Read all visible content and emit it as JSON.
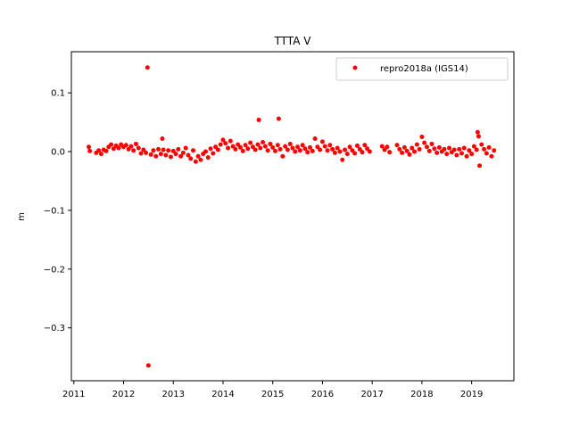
{
  "chart_data": {
    "type": "scatter",
    "title": "TTTA V",
    "xlabel": "",
    "ylabel": "m",
    "xlim": [
      2010.95,
      2019.85
    ],
    "ylim": [
      -0.39,
      0.17
    ],
    "xticks": [
      2011,
      2012,
      2013,
      2014,
      2015,
      2016,
      2017,
      2018,
      2019
    ],
    "xtick_labels": [
      "2011",
      "2012",
      "2013",
      "2014",
      "2015",
      "2016",
      "2017",
      "2018",
      "2019"
    ],
    "yticks": [
      0.1,
      0.0,
      -0.1,
      -0.2,
      -0.3
    ],
    "ytick_labels": [
      "0.1",
      "0.0",
      "−0.1",
      "−0.2",
      "−0.3"
    ],
    "grid": false,
    "legend_position": "top-right",
    "series": [
      {
        "name": "repro2018a (IGS14)",
        "color": "#ff0000",
        "marker": "circle",
        "points": [
          [
            2011.3,
            0.008
          ],
          [
            2011.32,
            0.001
          ],
          [
            2011.45,
            -0.002
          ],
          [
            2011.5,
            0.002
          ],
          [
            2011.55,
            -0.004
          ],
          [
            2011.6,
            0.003
          ],
          [
            2011.65,
            0.001
          ],
          [
            2011.7,
            0.008
          ],
          [
            2011.75,
            0.012
          ],
          [
            2011.8,
            0.005
          ],
          [
            2011.85,
            0.01
          ],
          [
            2011.9,
            0.006
          ],
          [
            2011.95,
            0.012
          ],
          [
            2012.0,
            0.008
          ],
          [
            2012.05,
            0.011
          ],
          [
            2012.1,
            0.004
          ],
          [
            2012.15,
            0.009
          ],
          [
            2012.2,
            0.002
          ],
          [
            2012.25,
            0.013
          ],
          [
            2012.3,
            0.006
          ],
          [
            2012.35,
            -0.003
          ],
          [
            2012.4,
            0.003
          ],
          [
            2012.45,
            -0.002
          ],
          [
            2012.48,
            0.143
          ],
          [
            2012.5,
            -0.364
          ],
          [
            2012.55,
            -0.005
          ],
          [
            2012.6,
            0.002
          ],
          [
            2012.65,
            -0.008
          ],
          [
            2012.7,
            0.004
          ],
          [
            2012.75,
            -0.004
          ],
          [
            2012.78,
            0.022
          ],
          [
            2012.8,
            0.003
          ],
          [
            2012.85,
            -0.006
          ],
          [
            2012.9,
            0.002
          ],
          [
            2012.95,
            -0.009
          ],
          [
            2013.0,
            0.001
          ],
          [
            2013.05,
            -0.004
          ],
          [
            2013.1,
            0.004
          ],
          [
            2013.15,
            -0.008
          ],
          [
            2013.2,
            -0.002
          ],
          [
            2013.25,
            0.006
          ],
          [
            2013.3,
            -0.006
          ],
          [
            2013.35,
            -0.012
          ],
          [
            2013.4,
            0.002
          ],
          [
            2013.45,
            -0.017
          ],
          [
            2013.5,
            -0.008
          ],
          [
            2013.55,
            -0.014
          ],
          [
            2013.6,
            -0.004
          ],
          [
            2013.65,
            0.0
          ],
          [
            2013.7,
            -0.01
          ],
          [
            2013.75,
            0.005
          ],
          [
            2013.8,
            -0.003
          ],
          [
            2013.85,
            0.008
          ],
          [
            2013.9,
            0.003
          ],
          [
            2013.95,
            0.012
          ],
          [
            2014.0,
            0.02
          ],
          [
            2014.05,
            0.014
          ],
          [
            2014.1,
            0.006
          ],
          [
            2014.15,
            0.018
          ],
          [
            2014.2,
            0.009
          ],
          [
            2014.25,
            0.004
          ],
          [
            2014.3,
            0.012
          ],
          [
            2014.35,
            0.007
          ],
          [
            2014.4,
            0.001
          ],
          [
            2014.45,
            0.011
          ],
          [
            2014.5,
            0.005
          ],
          [
            2014.55,
            0.015
          ],
          [
            2014.6,
            0.008
          ],
          [
            2014.65,
            0.003
          ],
          [
            2014.7,
            0.012
          ],
          [
            2014.72,
            0.054
          ],
          [
            2014.75,
            0.006
          ],
          [
            2014.8,
            0.016
          ],
          [
            2014.85,
            0.009
          ],
          [
            2014.9,
            0.002
          ],
          [
            2014.95,
            0.013
          ],
          [
            2015.0,
            0.007
          ],
          [
            2015.05,
            0.001
          ],
          [
            2015.1,
            0.011
          ],
          [
            2015.12,
            0.056
          ],
          [
            2015.15,
            0.004
          ],
          [
            2015.2,
            -0.008
          ],
          [
            2015.25,
            0.009
          ],
          [
            2015.3,
            0.003
          ],
          [
            2015.35,
            0.013
          ],
          [
            2015.4,
            0.006
          ],
          [
            2015.45,
            0.0
          ],
          [
            2015.5,
            0.008
          ],
          [
            2015.55,
            0.002
          ],
          [
            2015.6,
            0.011
          ],
          [
            2015.65,
            0.005
          ],
          [
            2015.7,
            -0.001
          ],
          [
            2015.75,
            0.007
          ],
          [
            2015.8,
            0.001
          ],
          [
            2015.85,
            0.022
          ],
          [
            2015.9,
            0.008
          ],
          [
            2015.95,
            0.003
          ],
          [
            2016.0,
            0.017
          ],
          [
            2016.05,
            0.009
          ],
          [
            2016.1,
            0.002
          ],
          [
            2016.15,
            0.011
          ],
          [
            2016.2,
            0.004
          ],
          [
            2016.25,
            -0.002
          ],
          [
            2016.3,
            0.006
          ],
          [
            2016.35,
            0.0
          ],
          [
            2016.4,
            -0.014
          ],
          [
            2016.45,
            0.003
          ],
          [
            2016.5,
            -0.004
          ],
          [
            2016.55,
            0.008
          ],
          [
            2016.6,
            0.002
          ],
          [
            2016.65,
            -0.003
          ],
          [
            2016.7,
            0.01
          ],
          [
            2016.75,
            0.004
          ],
          [
            2016.8,
            -0.001
          ],
          [
            2016.85,
            0.011
          ],
          [
            2016.9,
            0.005
          ],
          [
            2016.95,
            0.0
          ],
          [
            2017.2,
            0.009
          ],
          [
            2017.25,
            0.003
          ],
          [
            2017.3,
            0.008
          ],
          [
            2017.35,
            -0.001
          ],
          [
            2017.5,
            0.011
          ],
          [
            2017.55,
            0.004
          ],
          [
            2017.6,
            -0.002
          ],
          [
            2017.65,
            0.007
          ],
          [
            2017.7,
            0.001
          ],
          [
            2017.75,
            -0.005
          ],
          [
            2017.8,
            0.006
          ],
          [
            2017.85,
            0.0
          ],
          [
            2017.9,
            0.012
          ],
          [
            2017.95,
            0.004
          ],
          [
            2018.0,
            0.025
          ],
          [
            2018.05,
            0.015
          ],
          [
            2018.1,
            0.008
          ],
          [
            2018.15,
            0.001
          ],
          [
            2018.2,
            0.013
          ],
          [
            2018.25,
            0.005
          ],
          [
            2018.3,
            -0.002
          ],
          [
            2018.35,
            0.007
          ],
          [
            2018.4,
            0.0
          ],
          [
            2018.45,
            0.004
          ],
          [
            2018.5,
            -0.004
          ],
          [
            2018.55,
            0.006
          ],
          [
            2018.6,
            -0.001
          ],
          [
            2018.65,
            0.003
          ],
          [
            2018.7,
            -0.006
          ],
          [
            2018.75,
            0.004
          ],
          [
            2018.8,
            -0.003
          ],
          [
            2018.85,
            0.006
          ],
          [
            2018.9,
            -0.008
          ],
          [
            2018.95,
            0.002
          ],
          [
            2019.0,
            -0.004
          ],
          [
            2019.05,
            0.009
          ],
          [
            2019.1,
            0.003
          ],
          [
            2019.12,
            0.033
          ],
          [
            2019.14,
            0.026
          ],
          [
            2019.16,
            -0.024
          ],
          [
            2019.2,
            0.012
          ],
          [
            2019.25,
            0.004
          ],
          [
            2019.3,
            -0.003
          ],
          [
            2019.35,
            0.007
          ],
          [
            2019.4,
            -0.008
          ],
          [
            2019.45,
            0.002
          ]
        ]
      }
    ]
  }
}
